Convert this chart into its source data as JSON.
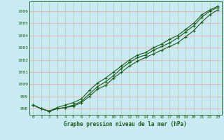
{
  "title": "Graphe pression niveau de la mer (hPa)",
  "background_color": "#c8eaf0",
  "grid_color_h": "#e8b0b0",
  "grid_color_v": "#b0d0c0",
  "line_color": "#1a5c1a",
  "xlim": [
    -0.5,
    23.5
  ],
  "ylim": [
    997.5,
    1006.8
  ],
  "yticks": [
    998,
    999,
    1000,
    1001,
    1002,
    1003,
    1004,
    1005,
    1006
  ],
  "xticks": [
    0,
    1,
    2,
    3,
    4,
    5,
    6,
    7,
    8,
    9,
    10,
    11,
    12,
    13,
    14,
    15,
    16,
    17,
    18,
    19,
    20,
    21,
    22,
    23
  ],
  "hours": [
    0,
    1,
    2,
    3,
    4,
    5,
    6,
    7,
    8,
    9,
    10,
    11,
    12,
    13,
    14,
    15,
    16,
    17,
    18,
    19,
    20,
    21,
    22,
    23
  ],
  "line1": [
    998.3,
    998.0,
    997.8,
    998.0,
    998.1,
    998.2,
    998.5,
    999.0,
    999.6,
    999.9,
    1000.5,
    1001.0,
    1001.5,
    1001.9,
    1002.2,
    1002.5,
    1002.8,
    1003.1,
    1003.4,
    1003.9,
    1004.4,
    1005.1,
    1005.7,
    1006.1
  ],
  "line2": [
    998.3,
    998.0,
    997.8,
    998.0,
    998.1,
    998.3,
    998.6,
    999.2,
    999.8,
    1000.2,
    1000.7,
    1001.3,
    1001.8,
    1002.2,
    1002.4,
    1002.8,
    1003.1,
    1003.4,
    1003.8,
    1004.3,
    1004.8,
    1005.5,
    1006.0,
    1006.3
  ],
  "line3": [
    998.3,
    998.0,
    997.8,
    998.1,
    998.3,
    998.5,
    998.8,
    999.5,
    1000.1,
    1000.5,
    1001.0,
    1001.5,
    1002.0,
    1002.4,
    1002.6,
    1003.0,
    1003.3,
    1003.7,
    1004.0,
    1004.5,
    1005.0,
    1005.7,
    1006.1,
    1006.4
  ]
}
